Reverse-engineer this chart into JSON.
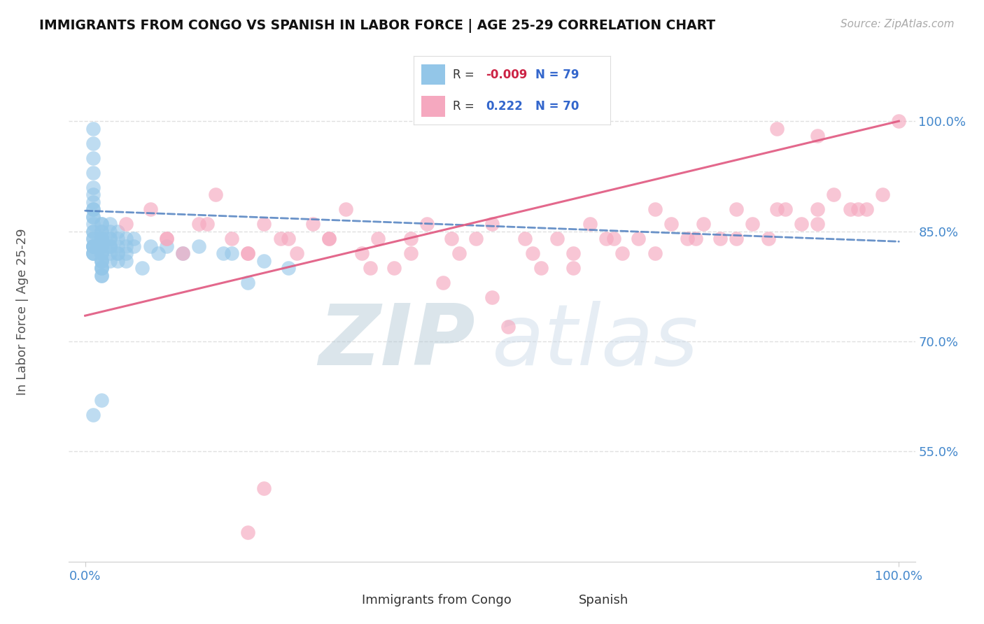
{
  "title": "IMMIGRANTS FROM CONGO VS SPANISH IN LABOR FORCE | AGE 25-29 CORRELATION CHART",
  "source": "Source: ZipAtlas.com",
  "ylabel": "In Labor Force | Age 25-29",
  "ytick_labels": [
    "55.0%",
    "70.0%",
    "85.0%",
    "100.0%"
  ],
  "ytick_values": [
    0.55,
    0.7,
    0.85,
    1.0
  ],
  "xlim": [
    -0.02,
    1.02
  ],
  "ylim": [
    0.4,
    1.08
  ],
  "legend1_label": "Immigrants from Congo",
  "legend2_label": "Spanish",
  "R_congo": -0.009,
  "N_congo": 79,
  "R_spanish": 0.222,
  "N_spanish": 70,
  "congo_color": "#93c6e8",
  "spanish_color": "#f5a8bf",
  "congo_trend_color": "#5080c0",
  "spanish_trend_color": "#e05880",
  "watermark_zip": "ZIP",
  "watermark_atlas": "atlas",
  "watermark_color": "#cddde8",
  "bg_color": "#ffffff",
  "grid_color": "#e0e0e0",
  "title_color": "#111111",
  "tick_label_color": "#4488cc",
  "source_color": "#aaaaaa",
  "legend_R_color": "#cc2244",
  "legend_N_color": "#3366cc",
  "congo_line_start_y": 0.878,
  "congo_line_end_y": 0.836,
  "spanish_line_start_y": 0.735,
  "spanish_line_end_y": 1.0
}
